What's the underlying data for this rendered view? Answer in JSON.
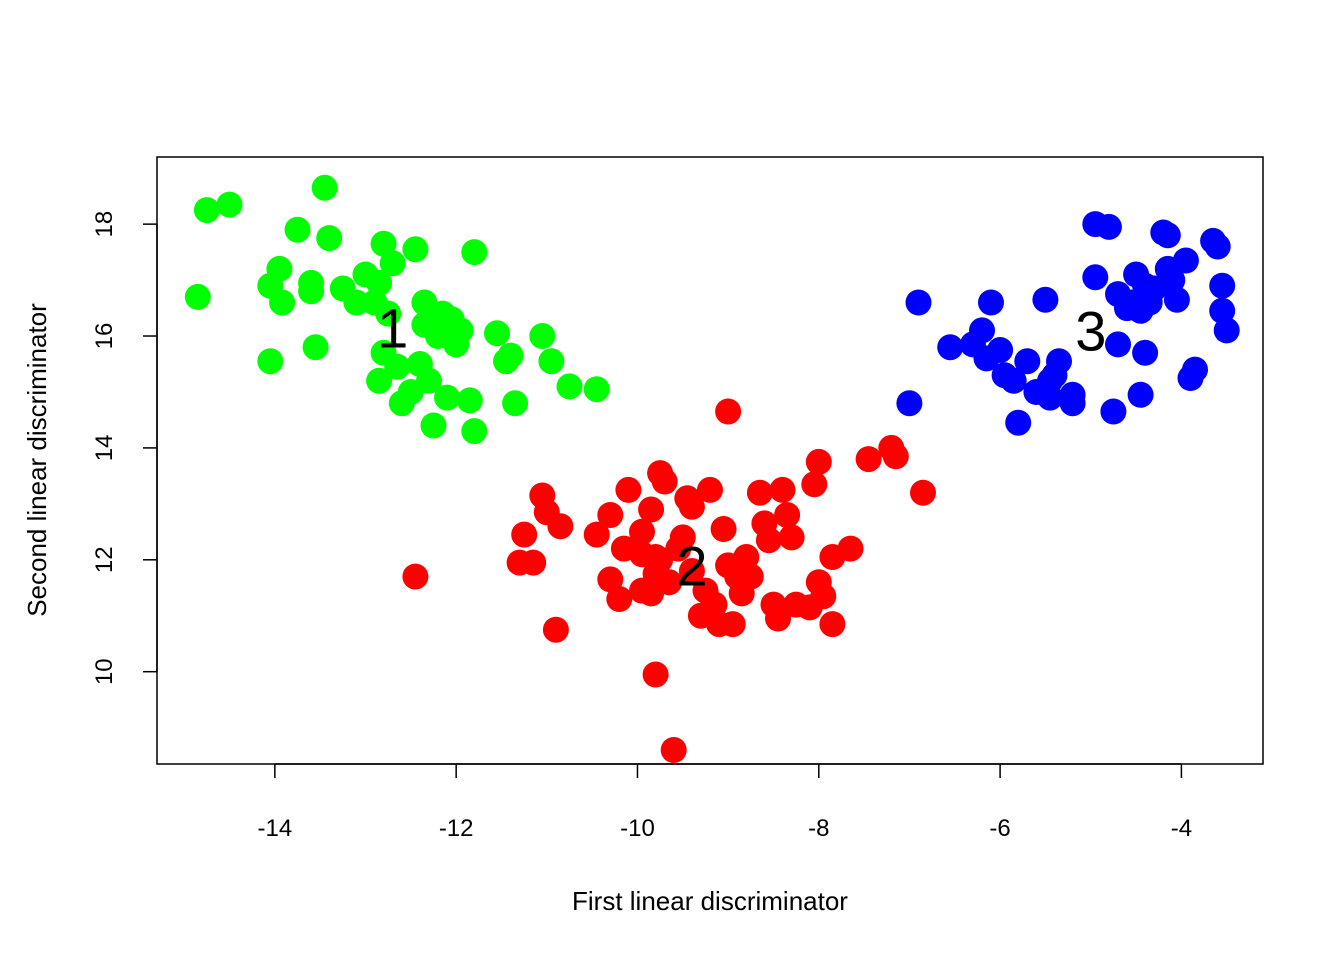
{
  "chart_data": {
    "type": "scatter",
    "title": "",
    "xlabel": "First linear discriminator",
    "ylabel": "Second linear discriminator",
    "xlim": [
      -15.3,
      -3.1
    ],
    "ylim": [
      8.35,
      19.2
    ],
    "xticks": [
      -14,
      -12,
      -10,
      -8,
      -6,
      -4
    ],
    "yticks": [
      10,
      12,
      14,
      16,
      18
    ],
    "grid": false,
    "legend": "none",
    "series": [
      {
        "color": "#00ff00",
        "centroid_label": "1",
        "centroid": [
          -12.7,
          16.15
        ],
        "points": [
          [
            -14.85,
            16.7
          ],
          [
            -14.75,
            18.25
          ],
          [
            -14.5,
            18.35
          ],
          [
            -14.05,
            16.9
          ],
          [
            -14.05,
            15.55
          ],
          [
            -13.95,
            17.2
          ],
          [
            -13.92,
            16.6
          ],
          [
            -13.75,
            17.9
          ],
          [
            -13.6,
            16.8
          ],
          [
            -13.6,
            16.95
          ],
          [
            -13.55,
            15.8
          ],
          [
            -13.45,
            18.65
          ],
          [
            -13.4,
            17.75
          ],
          [
            -13.25,
            16.85
          ],
          [
            -13.1,
            16.6
          ],
          [
            -13.0,
            17.1
          ],
          [
            -12.9,
            16.6
          ],
          [
            -12.85,
            16.95
          ],
          [
            -12.8,
            17.65
          ],
          [
            -12.85,
            15.2
          ],
          [
            -12.8,
            15.7
          ],
          [
            -12.75,
            16.4
          ],
          [
            -12.7,
            17.3
          ],
          [
            -12.65,
            15.45
          ],
          [
            -12.6,
            14.8
          ],
          [
            -12.5,
            15.0
          ],
          [
            -12.45,
            17.55
          ],
          [
            -12.4,
            15.5
          ],
          [
            -12.35,
            16.6
          ],
          [
            -12.35,
            16.2
          ],
          [
            -12.3,
            15.2
          ],
          [
            -12.25,
            14.4
          ],
          [
            -12.2,
            16.0
          ],
          [
            -12.15,
            16.4
          ],
          [
            -12.1,
            14.9
          ],
          [
            -12.05,
            16.3
          ],
          [
            -12.0,
            15.85
          ],
          [
            -11.95,
            16.1
          ],
          [
            -11.85,
            14.85
          ],
          [
            -11.8,
            17.5
          ],
          [
            -11.8,
            14.3
          ],
          [
            -11.55,
            16.05
          ],
          [
            -11.45,
            15.55
          ],
          [
            -11.4,
            15.65
          ],
          [
            -11.35,
            14.8
          ],
          [
            -11.05,
            16.0
          ],
          [
            -10.95,
            15.55
          ],
          [
            -10.75,
            15.1
          ],
          [
            -10.45,
            15.05
          ]
        ]
      },
      {
        "color": "#ff0000",
        "centroid_label": "2",
        "centroid": [
          -9.4,
          11.9
        ],
        "points": [
          [
            -12.45,
            11.7
          ],
          [
            -11.3,
            11.95
          ],
          [
            -11.25,
            12.45
          ],
          [
            -11.15,
            11.95
          ],
          [
            -11.05,
            13.15
          ],
          [
            -11.0,
            12.85
          ],
          [
            -10.85,
            12.6
          ],
          [
            -10.9,
            10.75
          ],
          [
            -10.45,
            12.45
          ],
          [
            -10.3,
            12.8
          ],
          [
            -10.3,
            11.65
          ],
          [
            -10.2,
            11.3
          ],
          [
            -10.15,
            12.2
          ],
          [
            -10.1,
            13.25
          ],
          [
            -9.95,
            12.1
          ],
          [
            -9.95,
            12.5
          ],
          [
            -9.95,
            11.45
          ],
          [
            -9.85,
            11.4
          ],
          [
            -9.85,
            12.9
          ],
          [
            -9.8,
            11.75
          ],
          [
            -9.8,
            12.05
          ],
          [
            -9.75,
            12.0
          ],
          [
            -9.75,
            13.55
          ],
          [
            -9.7,
            13.4
          ],
          [
            -9.65,
            11.6
          ],
          [
            -9.55,
            12.2
          ],
          [
            -9.5,
            12.4
          ],
          [
            -9.45,
            13.1
          ],
          [
            -9.4,
            12.95
          ],
          [
            -9.4,
            11.8
          ],
          [
            -9.3,
            11.0
          ],
          [
            -9.25,
            11.45
          ],
          [
            -9.2,
            13.25
          ],
          [
            -9.15,
            11.2
          ],
          [
            -9.1,
            10.85
          ],
          [
            -9.05,
            12.55
          ],
          [
            -9.0,
            11.9
          ],
          [
            -8.95,
            10.85
          ],
          [
            -8.9,
            11.7
          ],
          [
            -8.85,
            11.4
          ],
          [
            -8.8,
            12.05
          ],
          [
            -8.75,
            11.7
          ],
          [
            -8.65,
            13.2
          ],
          [
            -8.6,
            12.65
          ],
          [
            -8.55,
            12.35
          ],
          [
            -8.5,
            11.2
          ],
          [
            -8.45,
            10.95
          ],
          [
            -8.4,
            13.25
          ],
          [
            -8.35,
            12.8
          ],
          [
            -8.3,
            12.4
          ],
          [
            -8.25,
            11.2
          ],
          [
            -8.1,
            11.15
          ],
          [
            -8.05,
            13.35
          ],
          [
            -8.0,
            13.75
          ],
          [
            -8.0,
            11.6
          ],
          [
            -7.95,
            11.35
          ],
          [
            -7.85,
            10.85
          ],
          [
            -7.85,
            12.05
          ],
          [
            -7.65,
            12.2
          ],
          [
            -7.45,
            13.8
          ],
          [
            -7.2,
            14.0
          ],
          [
            -7.15,
            13.85
          ],
          [
            -6.85,
            13.2
          ],
          [
            -9.0,
            14.65
          ],
          [
            -9.8,
            9.95
          ],
          [
            -9.6,
            8.6
          ]
        ]
      },
      {
        "color": "#0000ff",
        "centroid_label": "3",
        "centroid": [
          -5.0,
          16.1
        ],
        "points": [
          [
            -7.0,
            14.8
          ],
          [
            -6.9,
            16.6
          ],
          [
            -6.55,
            15.8
          ],
          [
            -6.3,
            15.85
          ],
          [
            -6.2,
            16.1
          ],
          [
            -6.15,
            15.6
          ],
          [
            -6.1,
            16.6
          ],
          [
            -6.0,
            15.75
          ],
          [
            -5.95,
            15.3
          ],
          [
            -5.85,
            15.2
          ],
          [
            -5.8,
            14.45
          ],
          [
            -5.7,
            15.55
          ],
          [
            -5.6,
            15.0
          ],
          [
            -5.5,
            16.65
          ],
          [
            -5.45,
            15.2
          ],
          [
            -5.45,
            14.9
          ],
          [
            -5.4,
            15.3
          ],
          [
            -5.35,
            15.55
          ],
          [
            -5.2,
            14.95
          ],
          [
            -5.2,
            14.8
          ],
          [
            -4.95,
            18.0
          ],
          [
            -4.95,
            17.05
          ],
          [
            -4.8,
            17.95
          ],
          [
            -4.75,
            14.65
          ],
          [
            -4.7,
            16.75
          ],
          [
            -4.7,
            15.85
          ],
          [
            -4.6,
            16.5
          ],
          [
            -4.55,
            16.6
          ],
          [
            -4.5,
            17.1
          ],
          [
            -4.45,
            16.45
          ],
          [
            -4.4,
            16.9
          ],
          [
            -4.4,
            15.7
          ],
          [
            -4.35,
            16.6
          ],
          [
            -4.3,
            16.85
          ],
          [
            -4.2,
            17.85
          ],
          [
            -4.15,
            17.2
          ],
          [
            -4.15,
            17.8
          ],
          [
            -4.1,
            17.0
          ],
          [
            -4.05,
            16.65
          ],
          [
            -3.95,
            17.35
          ],
          [
            -3.9,
            15.25
          ],
          [
            -3.85,
            15.4
          ],
          [
            -3.65,
            17.7
          ],
          [
            -3.6,
            17.6
          ],
          [
            -3.55,
            16.9
          ],
          [
            -3.55,
            16.45
          ],
          [
            -3.5,
            16.1
          ],
          [
            -4.45,
            14.95
          ]
        ]
      }
    ]
  }
}
